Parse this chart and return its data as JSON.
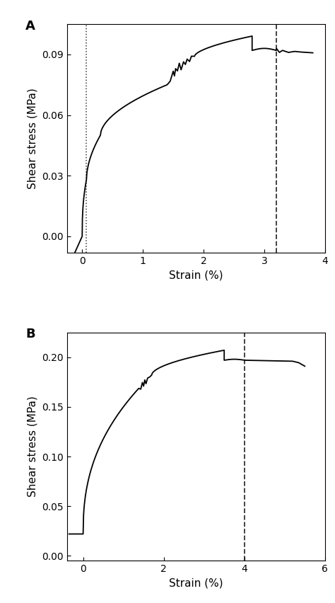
{
  "plot_A": {
    "label": "A",
    "xlabel": "Strain (%)",
    "ylabel": "Shear stress (MPa)",
    "xlim": [
      -0.25,
      4.0
    ],
    "ylim": [
      -0.008,
      0.105
    ],
    "xticks": [
      0,
      1,
      2,
      3,
      4
    ],
    "yticks": [
      0,
      0.03,
      0.06,
      0.09
    ],
    "dotted_vline_x": 0.07,
    "dashed_vline_x": 3.2,
    "curve_color": "#000000",
    "vline_color": "#333333"
  },
  "plot_B": {
    "label": "B",
    "xlabel": "Strain (%)",
    "ylabel": "Shear stress (MPa)",
    "xlim": [
      -0.4,
      5.8
    ],
    "ylim": [
      -0.005,
      0.225
    ],
    "xticks": [
      0,
      2,
      4,
      6
    ],
    "yticks": [
      0,
      0.05,
      0.1,
      0.15,
      0.2
    ],
    "dashed_vline_x": 4.0,
    "curve_color": "#000000",
    "vline_color": "#333333"
  },
  "figure_bgcolor": "#ffffff",
  "axes_bgcolor": "#ffffff",
  "linewidth": 1.3,
  "fontsize_label": 11,
  "fontsize_tick": 10,
  "fontsize_panel": 13
}
